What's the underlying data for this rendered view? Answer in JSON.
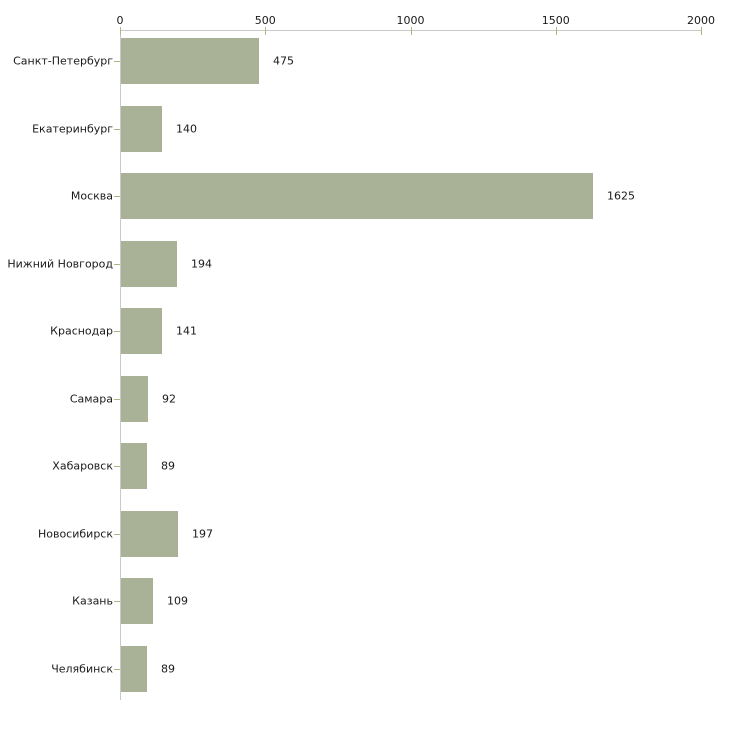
{
  "chart_data": {
    "type": "bar",
    "orientation": "horizontal",
    "title": "",
    "xlabel": "",
    "ylabel": "",
    "categories": [
      "Санкт-Петербург",
      "Екатеринбург",
      "Москва",
      "Нижний Новгород",
      "Краснодар",
      "Самара",
      "Хабаровск",
      "Новосибирск",
      "Казань",
      "Челябинск"
    ],
    "values": [
      475,
      140,
      1625,
      194,
      141,
      92,
      89,
      197,
      109,
      89
    ],
    "x_ticks": [
      0,
      500,
      1000,
      1500,
      2000
    ],
    "xlim": [
      0,
      2000
    ],
    "grid": false,
    "legend_position": "none",
    "axis_position": "top",
    "colors": {
      "bar_fill": "#a9b196",
      "axis_line": "#c9c9c9",
      "tick_mark": "#b2b383",
      "label_text": "#1a1a1a",
      "background": "#ffffff"
    }
  }
}
